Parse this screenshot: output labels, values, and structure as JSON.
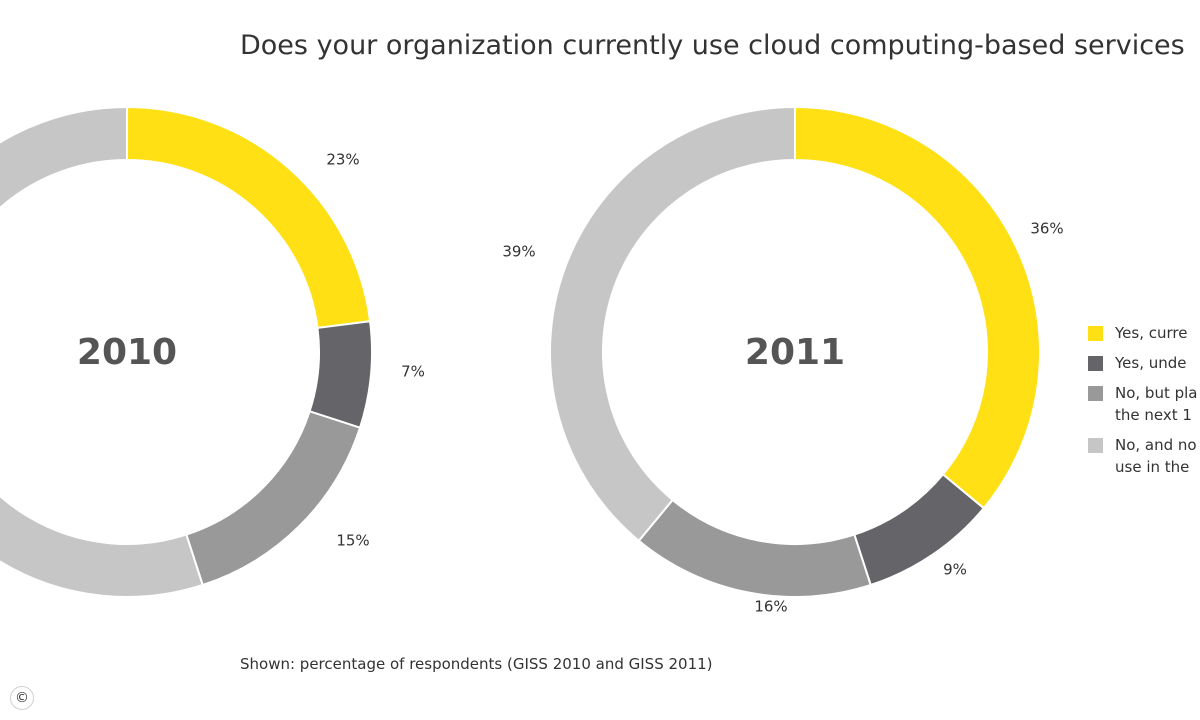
{
  "title": "Does your organization currently use cloud computing-based services",
  "footnote": "Shown: percentage of respondents (GISS 2010 and GISS 2011)",
  "copyright_symbol": "©",
  "colors": {
    "yes_currently": "#FFE015",
    "yes_evaluating": "#646469",
    "no_planning": "#999999",
    "no_not_planning": "#C6C6C6"
  },
  "chart_data": [
    {
      "type": "pie",
      "variant": "donut",
      "center_label": "2010",
      "slices": [
        {
          "value": 23,
          "label": "23%",
          "color_key": "yes_currently"
        },
        {
          "value": 7,
          "label": "7%",
          "color_key": "yes_evaluating"
        },
        {
          "value": 15,
          "label": "15%",
          "color_key": "no_planning"
        },
        {
          "value": 55,
          "label": "",
          "color_key": "no_not_planning"
        }
      ]
    },
    {
      "type": "pie",
      "variant": "donut",
      "center_label": "2011",
      "slices": [
        {
          "value": 36,
          "label": "36%",
          "color_key": "yes_currently"
        },
        {
          "value": 9,
          "label": "9%",
          "color_key": "yes_evaluating"
        },
        {
          "value": 16,
          "label": "16%",
          "color_key": "no_planning"
        },
        {
          "value": 39,
          "label": "39%",
          "color_key": "no_not_planning"
        }
      ]
    }
  ],
  "legend": [
    {
      "label": "Yes, curre",
      "color_key": "yes_currently"
    },
    {
      "label": "Yes, unde",
      "color_key": "yes_evaluating"
    },
    {
      "label": "No, but pla the next 1",
      "color_key": "no_planning"
    },
    {
      "label": "No, and no use in the",
      "color_key": "no_not_planning"
    }
  ]
}
